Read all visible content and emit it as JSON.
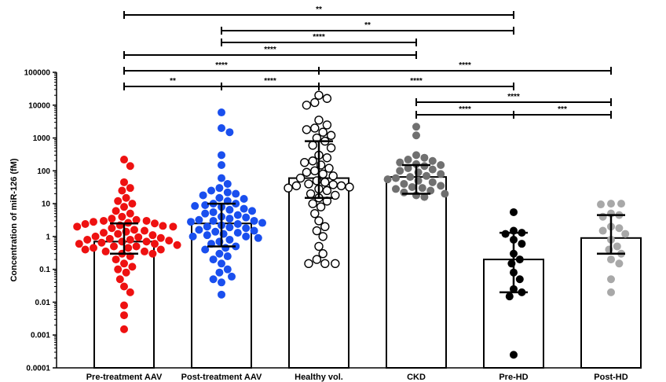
{
  "chart_data": {
    "type": "scatter",
    "title": "",
    "xlabel": "",
    "ylabel": "Concentration of miR-126 (fM)",
    "yscale": "log",
    "ylim": [
      0.0001,
      100000
    ],
    "yticks": [
      "0.0001",
      "0.001",
      "0.01",
      "0.1",
      "1",
      "10",
      "100",
      "1000",
      "10000",
      "100000"
    ],
    "grid": false,
    "legend": "none",
    "categories": [
      "Pre-treatment AAV",
      "Post-treatment AAV",
      "Healthy vol.",
      "CKD",
      "Pre-HD",
      "Post-HD"
    ],
    "series": [
      {
        "color": "#ee1111",
        "marker": "filled",
        "bar_median": 0.7,
        "error_low": 0.3,
        "error_high": 2.5,
        "values": [
          220,
          140,
          45,
          30,
          25,
          15,
          12,
          10,
          8,
          6,
          5,
          4,
          3.5,
          3.2,
          3,
          3,
          2.8,
          2.6,
          2.5,
          2.4,
          2.2,
          2.1,
          2,
          2,
          1.8,
          1.6,
          1.5,
          1.4,
          1.3,
          1.2,
          1.1,
          1,
          0.95,
          0.9,
          0.85,
          0.8,
          0.8,
          0.75,
          0.7,
          0.7,
          0.65,
          0.6,
          0.6,
          0.55,
          0.5,
          0.5,
          0.45,
          0.45,
          0.4,
          0.4,
          0.35,
          0.35,
          0.3,
          0.3,
          0.25,
          0.2,
          0.15,
          0.12,
          0.1,
          0.08,
          0.05,
          0.03,
          0.02,
          0.008,
          0.004,
          0.0015
        ]
      },
      {
        "color": "#1a4fee",
        "marker": "filled",
        "bar_median": 2.5,
        "error_low": 0.5,
        "error_high": 10,
        "values": [
          6000,
          2000,
          1500,
          300,
          150,
          60,
          40,
          30,
          25,
          22,
          20,
          18,
          15,
          14,
          12,
          10,
          10,
          9,
          8.5,
          8,
          7,
          6.5,
          6,
          5.5,
          5,
          4.5,
          4,
          3.8,
          3.5,
          3.2,
          3,
          3,
          2.8,
          2.6,
          2.4,
          2.2,
          2,
          1.9,
          1.8,
          1.6,
          1.5,
          1.4,
          1.3,
          1.2,
          1.1,
          1,
          1,
          0.9,
          0.8,
          0.7,
          0.6,
          0.5,
          0.45,
          0.4,
          0.3,
          0.25,
          0.2,
          0.15,
          0.1,
          0.08,
          0.06,
          0.05,
          0.04,
          0.017
        ]
      },
      {
        "color": "#000000",
        "marker": "hollow",
        "bar_median": 60,
        "error_low": 15,
        "error_high": 800,
        "values": [
          20000,
          16000,
          12000,
          10000,
          3500,
          2500,
          2000,
          1800,
          1500,
          1200,
          1000,
          800,
          600,
          500,
          300,
          250,
          200,
          180,
          150,
          120,
          100,
          90,
          80,
          70,
          60,
          50,
          45,
          40,
          38,
          35,
          35,
          32,
          30,
          28,
          25,
          20,
          18,
          15,
          12,
          10,
          8,
          5,
          3,
          2,
          1.5,
          1,
          0.5,
          0.3,
          0.2,
          0.15,
          0.15,
          0.15
        ]
      },
      {
        "color": "#707070",
        "marker": "filled",
        "bar_median": 65,
        "error_low": 20,
        "error_high": 150,
        "values": [
          2200,
          1200,
          300,
          250,
          220,
          200,
          180,
          160,
          150,
          140,
          120,
          110,
          100,
          90,
          80,
          70,
          65,
          60,
          55,
          50,
          45,
          40,
          35,
          32,
          30,
          28,
          25,
          22,
          20,
          18,
          16
        ]
      },
      {
        "color": "#000000",
        "marker": "filled",
        "bar_median": 0.2,
        "error_low": 0.02,
        "error_high": 1.3,
        "values": [
          5.5,
          1.5,
          1.3,
          1.2,
          0.8,
          0.6,
          0.3,
          0.2,
          0.15,
          0.08,
          0.05,
          0.025,
          0.02,
          0.015,
          0.00025
        ]
      },
      {
        "color": "#a8a8a8",
        "marker": "filled",
        "bar_median": 0.9,
        "error_low": 0.3,
        "error_high": 4.5,
        "values": [
          10,
          10,
          9.5,
          5,
          4.5,
          4,
          2,
          1.8,
          1.5,
          1.2,
          0.8,
          0.5,
          0.4,
          0.3,
          0.2,
          0.15,
          0.05,
          0.02
        ]
      }
    ],
    "significance": [
      {
        "from": "Pre-treatment AAV",
        "to": "Pre-HD",
        "label": "**"
      },
      {
        "from": "Post-treatment AAV",
        "to": "Pre-HD",
        "label": "**"
      },
      {
        "from": "Post-treatment AAV",
        "to": "CKD",
        "label": "****"
      },
      {
        "from": "Pre-treatment AAV",
        "to": "CKD",
        "label": "****"
      },
      {
        "from": "Pre-treatment AAV",
        "to": "Healthy vol.",
        "label": "****"
      },
      {
        "from": "Healthy vol.",
        "to": "Post-HD",
        "label": "****"
      },
      {
        "from": "Pre-treatment AAV",
        "to": "Post-treatment AAV",
        "label": "**"
      },
      {
        "from": "Post-treatment AAV",
        "to": "Healthy vol.",
        "label": "****"
      },
      {
        "from": "Healthy vol.",
        "to": "Pre-HD",
        "label": "****"
      },
      {
        "from": "CKD",
        "to": "Post-HD",
        "label": "****"
      },
      {
        "from": "CKD",
        "to": "Pre-HD",
        "label": "****"
      },
      {
        "from": "Pre-HD",
        "to": "Post-HD",
        "label": "***"
      }
    ]
  }
}
